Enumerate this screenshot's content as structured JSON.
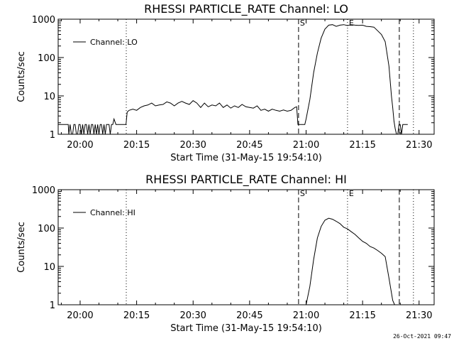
{
  "timestamp": "26-Oct-2021 09:47",
  "chart_data": [
    {
      "type": "line",
      "title": "RHESSI PARTICLE_RATE Channel: LO",
      "xlabel": "Start Time (31-May-15 19:54:10)",
      "ylabel": "Counts/sec",
      "yscale": "log",
      "ylim": [
        1,
        1000
      ],
      "xlim": [
        "19:54:10",
        "21:34:00"
      ],
      "x_ticks": [
        "20:00",
        "20:15",
        "20:30",
        "20:45",
        "21:00",
        "21:15",
        "21:30"
      ],
      "y_ticks": [
        "1",
        "10",
        "100",
        "1000"
      ],
      "legend": {
        "position": "top-left",
        "label": "Channel: LO"
      },
      "markers": [
        {
          "time": "20:12:15",
          "style": "dotted",
          "label": ""
        },
        {
          "time": "20:58:00",
          "style": "dashed",
          "label": "S"
        },
        {
          "time": "21:11:00",
          "style": "dotted",
          "label": "E"
        },
        {
          "time": "21:24:45",
          "style": "dashed",
          "label": ""
        },
        {
          "time": "21:28:30",
          "style": "dotted",
          "label": ""
        }
      ],
      "series": [
        {
          "name": "Channel: LO",
          "x": [
            "19:54:10",
            "19:56:50",
            "19:57:00",
            "19:57:20",
            "19:57:40",
            "19:58:00",
            "19:58:20",
            "19:58:40",
            "19:59:00",
            "19:59:20",
            "19:59:40",
            "20:00:00",
            "20:00:20",
            "20:00:40",
            "20:01:00",
            "20:01:20",
            "20:01:40",
            "20:02:00",
            "20:02:20",
            "20:02:40",
            "20:03:00",
            "20:03:20",
            "20:03:40",
            "20:04:00",
            "20:04:20",
            "20:04:40",
            "20:05:00",
            "20:05:20",
            "20:05:40",
            "20:06:00",
            "20:06:20",
            "20:06:40",
            "20:07:00",
            "20:07:20",
            "20:07:40",
            "20:08:00",
            "20:08:20",
            "20:08:40",
            "20:09:00",
            "20:09:30",
            "20:12:10",
            "20:12:30",
            "20:13:00",
            "20:14:00",
            "20:15:00",
            "20:16:00",
            "20:17:00",
            "20:18:00",
            "20:19:00",
            "20:20:00",
            "20:21:00",
            "20:22:00",
            "20:23:00",
            "20:24:00",
            "20:25:00",
            "20:26:00",
            "20:27:00",
            "20:28:00",
            "20:29:00",
            "20:30:00",
            "20:31:00",
            "20:32:00",
            "20:33:00",
            "20:34:00",
            "20:35:00",
            "20:36:00",
            "20:37:00",
            "20:38:00",
            "20:39:00",
            "20:40:00",
            "20:41:00",
            "20:42:00",
            "20:43:00",
            "20:44:00",
            "20:45:00",
            "20:46:00",
            "20:47:00",
            "20:48:00",
            "20:49:00",
            "20:50:00",
            "20:51:00",
            "20:52:00",
            "20:53:00",
            "20:54:00",
            "20:55:00",
            "20:56:00",
            "20:57:00",
            "20:57:30",
            "20:57:50",
            "20:59:40",
            "21:00:00",
            "21:01:00",
            "21:02:00",
            "21:03:00",
            "21:04:00",
            "21:05:00",
            "21:06:00",
            "21:07:00",
            "21:08:00",
            "21:09:00",
            "21:10:00",
            "21:11:00",
            "21:12:00",
            "21:13:00",
            "21:14:00",
            "21:15:00",
            "21:16:00",
            "21:17:00",
            "21:18:00",
            "21:19:00",
            "21:20:00",
            "21:21:00",
            "21:22:00",
            "21:22:40",
            "21:23:00",
            "21:23:20",
            "21:23:40",
            "21:24:00",
            "21:24:20",
            "21:24:40",
            "21:25:00",
            "21:25:20",
            "21:25:40",
            "21:26:00",
            "21:26:20",
            "21:27:00"
          ],
          "values": [
            1.8,
            1.8,
            1.0,
            1.8,
            1.0,
            1.0,
            1.8,
            1.8,
            1.0,
            1.0,
            1.8,
            1.8,
            1.0,
            1.8,
            1.0,
            1.8,
            1.8,
            1.0,
            1.8,
            1.0,
            1.8,
            1.8,
            1.0,
            1.8,
            1.0,
            1.8,
            1.0,
            1.8,
            1.8,
            1.0,
            1.8,
            1.0,
            1.8,
            1.8,
            1.8,
            1.0,
            1.8,
            1.8,
            2.5,
            1.8,
            1.8,
            3.8,
            4.2,
            4.5,
            4.2,
            5.0,
            5.5,
            5.8,
            6.5,
            5.5,
            5.8,
            6.0,
            7.0,
            6.5,
            5.5,
            6.5,
            7.2,
            6.5,
            6.0,
            7.5,
            6.5,
            5.0,
            6.5,
            5.2,
            5.8,
            5.5,
            6.5,
            5.0,
            5.8,
            4.8,
            5.5,
            5.0,
            6.0,
            5.2,
            5.0,
            4.8,
            5.5,
            4.2,
            4.5,
            4.0,
            4.5,
            4.2,
            4.0,
            4.3,
            4.0,
            4.2,
            5.0,
            5.2,
            1.8,
            1.8,
            2.5,
            8,
            40,
            130,
            320,
            550,
            700,
            720,
            650,
            700,
            720,
            680,
            720,
            700,
            690,
            700,
            650,
            640,
            620,
            500,
            400,
            260,
            60,
            10,
            5,
            2.2,
            1.4,
            1.0,
            1.0,
            1.8,
            1.8,
            1.0,
            1.8,
            1.8,
            1.8,
            1.8
          ]
        }
      ]
    },
    {
      "type": "line",
      "title": "RHESSI PARTICLE_RATE Channel: HI",
      "xlabel": "Start Time (31-May-15 19:54:10)",
      "ylabel": "Counts/sec",
      "yscale": "log",
      "ylim": [
        1,
        1000
      ],
      "xlim": [
        "19:54:10",
        "21:34:00"
      ],
      "x_ticks": [
        "20:00",
        "20:15",
        "20:30",
        "20:45",
        "21:00",
        "21:15",
        "21:30"
      ],
      "y_ticks": [
        "1",
        "10",
        "100",
        "1000"
      ],
      "legend": {
        "position": "top-left",
        "label": "Channel: HI"
      },
      "markers": [
        {
          "time": "20:12:15",
          "style": "dotted",
          "label": ""
        },
        {
          "time": "20:58:00",
          "style": "dashed",
          "label": "S"
        },
        {
          "time": "21:11:00",
          "style": "dotted",
          "label": "E"
        },
        {
          "time": "21:24:45",
          "style": "dashed",
          "label": ""
        },
        {
          "time": "21:28:30",
          "style": "dotted",
          "label": ""
        }
      ],
      "series": [
        {
          "name": "Channel: HI",
          "x": [
            "21:00:00",
            "21:01:00",
            "21:02:00",
            "21:03:00",
            "21:04:00",
            "21:05:00",
            "21:06:00",
            "21:07:00",
            "21:08:00",
            "21:09:00",
            "21:10:00",
            "21:11:00",
            "21:12:00",
            "21:13:00",
            "21:14:00",
            "21:15:00",
            "21:16:00",
            "21:17:00",
            "21:18:00",
            "21:19:00",
            "21:20:00",
            "21:21:00",
            "21:22:00",
            "21:23:00",
            "21:23:30"
          ],
          "values": [
            1.0,
            3,
            15,
            55,
            110,
            160,
            180,
            170,
            150,
            130,
            105,
            95,
            80,
            68,
            55,
            45,
            40,
            33,
            30,
            26,
            22,
            18,
            5,
            1.3,
            1.0
          ]
        }
      ]
    }
  ]
}
